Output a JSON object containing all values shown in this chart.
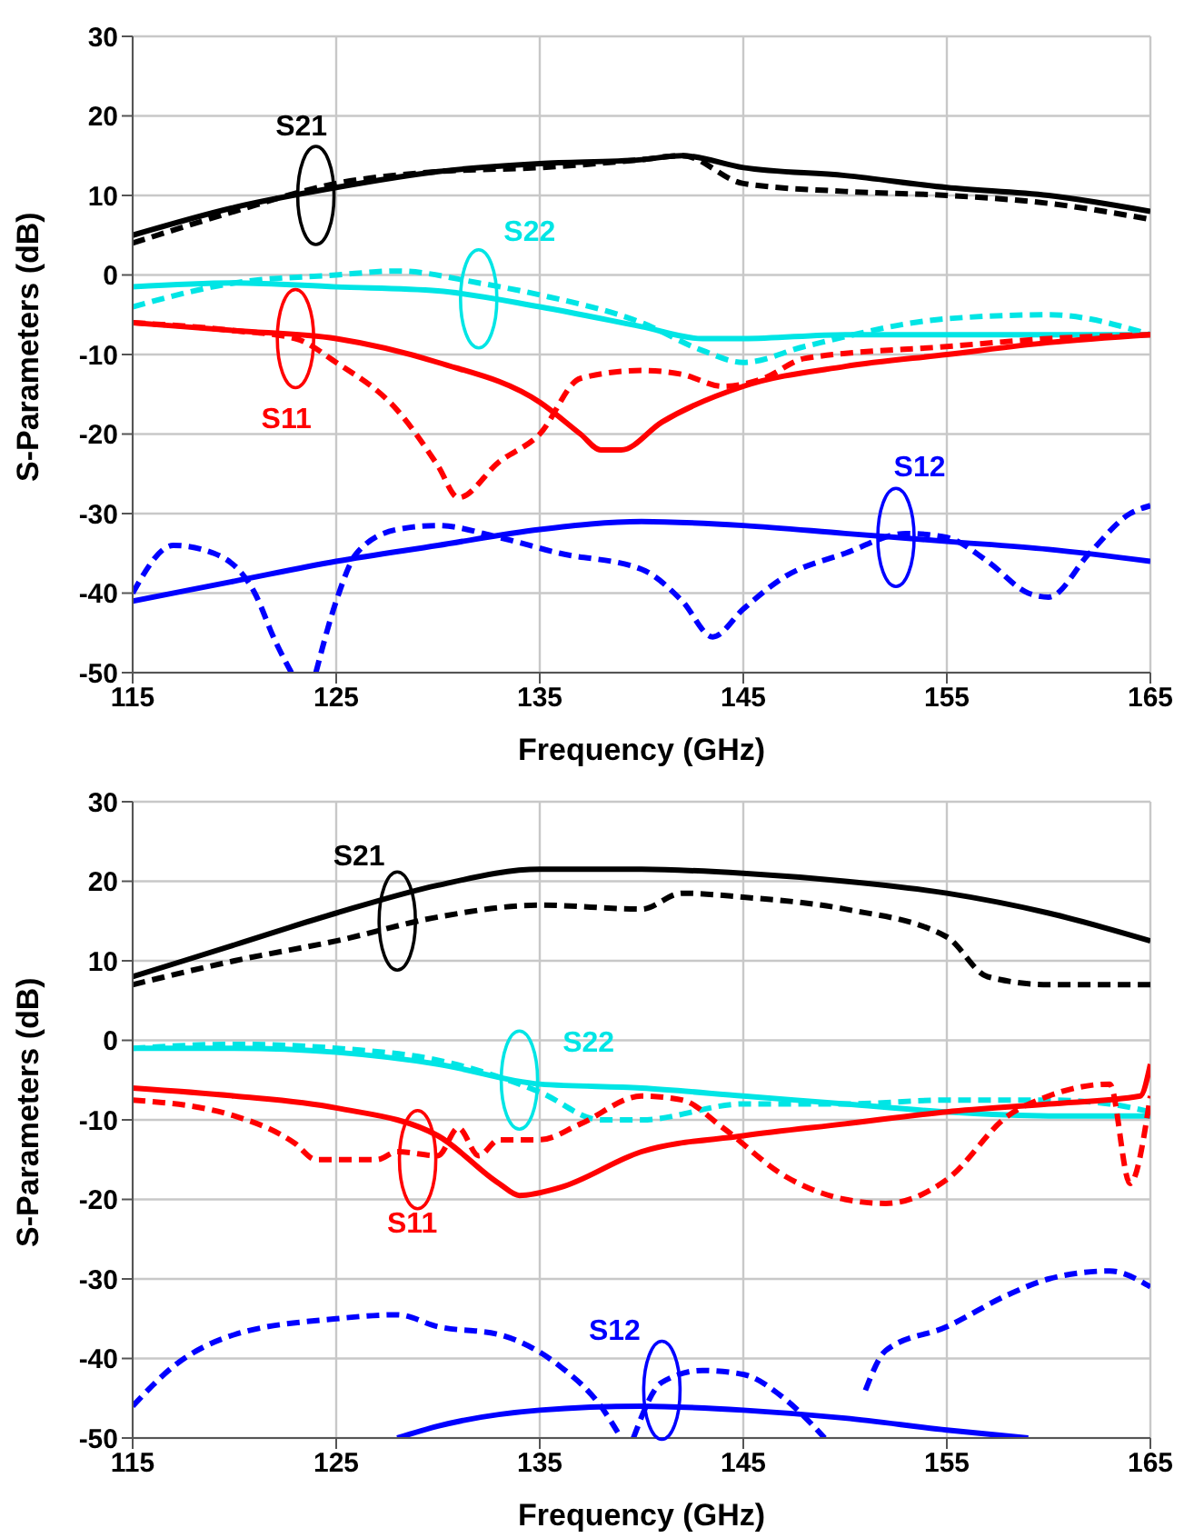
{
  "chart_data": [
    {
      "type": "line",
      "xlabel": "Frequency (GHz)",
      "ylabel": "S-Parameters (dB)",
      "xlim": [
        115,
        165
      ],
      "ylim": [
        -50,
        30
      ],
      "xticks": [
        115,
        125,
        135,
        145,
        155,
        165
      ],
      "yticks": [
        -50,
        -40,
        -30,
        -20,
        -10,
        0,
        10,
        20,
        30
      ],
      "grid": true,
      "series": [
        {
          "color": "#000000",
          "line_style": "solid",
          "x": [
            115,
            120,
            125,
            130,
            135,
            140,
            142,
            145,
            150,
            155,
            160,
            165
          ],
          "values": [
            5,
            8.5,
            11,
            13,
            14,
            14.5,
            15,
            13.5,
            12.5,
            11,
            10,
            8
          ]
        },
        {
          "color": "#000000",
          "line_style": "dashed",
          "x": [
            115,
            120,
            125,
            130,
            135,
            140,
            142,
            145,
            150,
            155,
            160,
            165
          ],
          "values": [
            4,
            8,
            11.5,
            13,
            13.5,
            14.5,
            15,
            11.5,
            10.5,
            10,
            9,
            7
          ]
        },
        {
          "color": "#00e5e5",
          "line_style": "solid",
          "x": [
            115,
            120,
            125,
            130,
            135,
            140,
            143,
            145,
            150,
            155,
            160,
            165
          ],
          "values": [
            -1.5,
            -1,
            -1.5,
            -2,
            -4,
            -6.5,
            -8,
            -8,
            -7.5,
            -7.5,
            -7.5,
            -7.5
          ]
        },
        {
          "color": "#00e5e5",
          "line_style": "dashed",
          "x": [
            115,
            120,
            125,
            128,
            132,
            135,
            140,
            143,
            145,
            148,
            155,
            160,
            165
          ],
          "values": [
            -4,
            -1,
            0,
            0.5,
            -1,
            -2.5,
            -6,
            -9.5,
            -11,
            -9,
            -5.5,
            -5,
            -7.5
          ]
        },
        {
          "color": "#ff0000",
          "line_style": "solid",
          "x": [
            115,
            120,
            125,
            130,
            135,
            137,
            138,
            139,
            141,
            145,
            150,
            155,
            160,
            165
          ],
          "values": [
            -6,
            -7,
            -8,
            -11,
            -16,
            -20,
            -22,
            -22,
            -18.5,
            -14,
            -11.5,
            -10,
            -8.5,
            -7.5
          ]
        },
        {
          "color": "#ff0000",
          "line_style": "dashed",
          "x": [
            115,
            120,
            123,
            125,
            128,
            130,
            131,
            133,
            135,
            137,
            140,
            142,
            144,
            146,
            148,
            155,
            160,
            165
          ],
          "values": [
            -6,
            -7,
            -8,
            -11,
            -17,
            -24,
            -28,
            -23.5,
            -20,
            -13,
            -12,
            -12.5,
            -14,
            -13,
            -10.5,
            -9,
            -8,
            -7.5
          ]
        },
        {
          "color": "#0000ff",
          "line_style": "solid",
          "x": [
            115,
            120,
            125,
            130,
            135,
            140,
            145,
            150,
            155,
            160,
            165
          ],
          "values": [
            -41,
            -38.5,
            -36,
            -34,
            -32,
            -31,
            -31.5,
            -32.5,
            -33.5,
            -34.5,
            -36
          ]
        },
        {
          "color": "#0000ff",
          "line_style": "dashed",
          "x": [
            115,
            117,
            119,
            121,
            122,
            122.8,
            123.4,
            124,
            125,
            126,
            128,
            130,
            133,
            136,
            140,
            142,
            143.5,
            145,
            147,
            150,
            153,
            155,
            157,
            159,
            160,
            162,
            164,
            165
          ],
          "values": [
            -40,
            -34,
            -35,
            -40,
            -46,
            -50,
            null,
            -50,
            -41,
            -35,
            -32,
            -31.5,
            -33,
            -35,
            -37,
            -41,
            -45.5,
            -42,
            -38,
            -35,
            -32.5,
            -33,
            -36,
            -40,
            -40.5,
            -35,
            -30,
            -29
          ]
        }
      ],
      "annotations": [
        {
          "text": "S21",
          "x": 124,
          "y": 10
        },
        {
          "text": "S22",
          "x": 132,
          "y": -3
        },
        {
          "text": "S11",
          "x": 123,
          "y": -8
        },
        {
          "text": "S12",
          "x": 152.5,
          "y": -33
        }
      ]
    },
    {
      "type": "line",
      "xlabel": "Frequency (GHz)",
      "ylabel": "S-Parameters (dB)",
      "xlim": [
        115,
        165
      ],
      "ylim": [
        -50,
        30
      ],
      "xticks": [
        115,
        125,
        135,
        145,
        155,
        165
      ],
      "yticks": [
        -50,
        -40,
        -30,
        -20,
        -10,
        0,
        10,
        20,
        30
      ],
      "grid": true,
      "series": [
        {
          "color": "#000000",
          "line_style": "solid",
          "x": [
            115,
            120,
            125,
            130,
            135,
            140,
            145,
            150,
            155,
            160,
            165
          ],
          "values": [
            8,
            12,
            16,
            19.5,
            21.5,
            21.5,
            21,
            20,
            18.5,
            16,
            12.5
          ]
        },
        {
          "color": "#000000",
          "line_style": "dashed",
          "x": [
            115,
            120,
            125,
            130,
            135,
            140,
            142,
            145,
            150,
            155,
            157,
            160,
            163,
            165
          ],
          "values": [
            7,
            10,
            12.5,
            15.5,
            17,
            16.5,
            18.5,
            18,
            16.5,
            13,
            8,
            7,
            7,
            7
          ]
        },
        {
          "color": "#00e5e5",
          "line_style": "solid",
          "x": [
            115,
            120,
            125,
            130,
            135,
            140,
            145,
            150,
            155,
            160,
            165
          ],
          "values": [
            -1,
            -1,
            -1.5,
            -3,
            -5.5,
            -6,
            -7,
            -8,
            -9,
            -9.5,
            -9.5
          ]
        },
        {
          "color": "#00e5e5",
          "line_style": "dashed",
          "x": [
            115,
            120,
            125,
            130,
            135,
            138,
            140,
            145,
            150,
            155,
            160,
            163,
            165
          ],
          "values": [
            -1,
            -0.5,
            -1,
            -2.5,
            -6.5,
            -10,
            -10,
            -8,
            -8,
            -7.5,
            -7.5,
            -8,
            -9
          ]
        },
        {
          "color": "#ff0000",
          "line_style": "solid",
          "x": [
            115,
            120,
            125,
            130,
            133,
            134,
            136,
            140,
            145,
            150,
            155,
            160,
            164.5,
            165
          ],
          "values": [
            -6,
            -7,
            -8.5,
            -12,
            -18,
            -19.5,
            -18.5,
            -14,
            -12,
            -10.5,
            -9,
            -8,
            -7,
            -3
          ]
        },
        {
          "color": "#ff0000",
          "line_style": "dashed",
          "x": [
            115,
            120,
            123,
            124,
            127,
            128,
            130,
            131,
            132,
            133,
            135,
            137,
            140,
            142,
            144,
            147,
            150,
            152,
            155,
            158,
            160,
            163,
            164,
            165
          ],
          "values": [
            -7.5,
            -9.5,
            -13,
            -15,
            -15,
            -14,
            -14.5,
            -11,
            -14.5,
            -12.5,
            -12.5,
            -10.5,
            -7,
            -7.5,
            -11,
            -17,
            -20,
            -20.5,
            -17.5,
            -9.5,
            -7,
            -5.5,
            -18,
            -7
          ]
        },
        {
          "color": "#0000ff",
          "line_style": "solid",
          "x": [
            128,
            130,
            135,
            140,
            145,
            150,
            155,
            159
          ],
          "values": [
            -50,
            -48.5,
            -46.5,
            -46,
            -46.5,
            -47.5,
            -49,
            -50
          ]
        },
        {
          "color": "#0000ff",
          "line_style": "dashed",
          "x": [
            115,
            117,
            120,
            125,
            128,
            130,
            133,
            136,
            138,
            139,
            139.3,
            139.6,
            141,
            143,
            145,
            147,
            149,
            150,
            151,
            152,
            155,
            158,
            160,
            163,
            165
          ],
          "values": [
            -46,
            -41,
            -37,
            -35,
            -34.5,
            -36,
            -37,
            -41,
            -46,
            -50,
            null,
            -50,
            -43,
            -41.5,
            -42,
            -45,
            -50,
            null,
            -44,
            -39,
            -36,
            -32,
            -30,
            -29,
            -31
          ]
        }
      ],
      "annotations": [
        {
          "text": "S21",
          "x": 128,
          "y": 15
        },
        {
          "text": "S22",
          "x": 134,
          "y": -5
        },
        {
          "text": "S11",
          "x": 129,
          "y": -15
        },
        {
          "text": "S12",
          "x": 141,
          "y": -44
        }
      ]
    }
  ]
}
